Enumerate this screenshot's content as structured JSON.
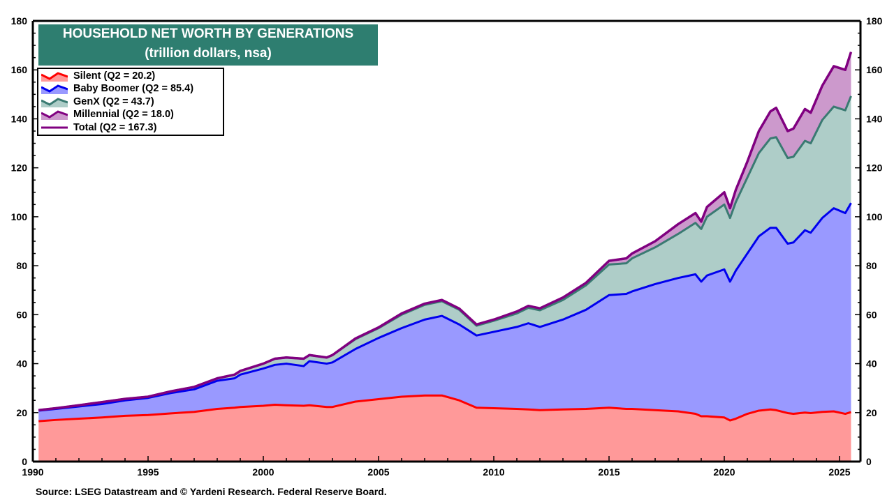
{
  "chart_data": {
    "type": "area",
    "stacked": true,
    "title": "HOUSEHOLD NET WORTH BY GENERATIONS",
    "subtitle": "(trillion dollars, nsa)",
    "xlabel": "",
    "ylabel": "",
    "xlim": [
      1990,
      2026
    ],
    "ylim": [
      0,
      180
    ],
    "x_ticks": [
      "1990",
      "1995",
      "2000",
      "2005",
      "2010",
      "2015",
      "2020",
      "2025"
    ],
    "y_ticks": [
      "0",
      "20",
      "40",
      "60",
      "80",
      "100",
      "120",
      "140",
      "160",
      "180"
    ],
    "grid": false,
    "legend_placement": "top-left",
    "source": "Source: LSEG Datastream and © Yardeni Research. Federal Reserve Board.",
    "x": [
      1990.25,
      1991,
      1992,
      1993,
      1994,
      1995,
      1996,
      1997,
      1998,
      1998.75,
      1999,
      2000,
      2000.5,
      2001,
      2001.75,
      2002,
      2002.75,
      2003,
      2004,
      2005,
      2006,
      2007,
      2007.75,
      2008.5,
      2009.25,
      2010,
      2011,
      2011.5,
      2012,
      2013,
      2014,
      2015,
      2015.75,
      2016,
      2017,
      2018,
      2018.75,
      2019,
      2019.25,
      2020,
      2020.25,
      2020.5,
      2021,
      2021.5,
      2022,
      2022.25,
      2022.75,
      2023,
      2023.5,
      2023.75,
      2024.25,
      2024.75,
      2025.25,
      2025.5
    ],
    "series": [
      {
        "name": "Silent (Q2 = 20.2)",
        "fill": "#ff9999",
        "line": "#ff0000",
        "values": [
          16.5,
          17.0,
          17.5,
          18.0,
          18.7,
          19.0,
          19.7,
          20.3,
          21.5,
          22.0,
          22.3,
          22.8,
          23.2,
          23.0,
          22.8,
          23.0,
          22.3,
          22.3,
          24.5,
          25.5,
          26.5,
          27.0,
          27.0,
          25.0,
          22.0,
          21.8,
          21.5,
          21.3,
          21.0,
          21.3,
          21.5,
          22.0,
          21.5,
          21.5,
          21.0,
          20.5,
          19.5,
          18.5,
          18.5,
          18.0,
          16.8,
          17.5,
          19.5,
          20.8,
          21.3,
          21.0,
          19.8,
          19.5,
          20.0,
          19.8,
          20.3,
          20.5,
          19.5,
          20.2
        ]
      },
      {
        "name": "Baby Boomer (Q2 = 85.4)",
        "fill": "#9999ff",
        "line": "#0000ee",
        "values": [
          4.3,
          4.5,
          5.0,
          5.5,
          6.3,
          7.0,
          8.3,
          9.2,
          11.5,
          12.0,
          13.2,
          15.2,
          16.3,
          17.0,
          16.2,
          18.0,
          17.7,
          18.2,
          21.5,
          25.0,
          28.0,
          31.0,
          32.5,
          31.0,
          29.5,
          31.2,
          33.5,
          35.2,
          34.0,
          36.7,
          40.5,
          46.0,
          47.0,
          48.0,
          51.5,
          54.5,
          57.0,
          55.0,
          57.5,
          60.5,
          56.7,
          60.5,
          65.5,
          71.2,
          74.2,
          74.5,
          69.2,
          70.0,
          74.5,
          73.7,
          79.2,
          83.0,
          82.0,
          85.4
        ]
      },
      {
        "name": "GenX (Q2 = 43.7)",
        "fill": "#aecdc8",
        "line": "#3a7a72",
        "values": [
          0.2,
          0.3,
          0.5,
          0.8,
          0.6,
          0.5,
          0.7,
          1.0,
          1.0,
          1.5,
          1.5,
          2.0,
          2.5,
          2.5,
          3.0,
          2.5,
          2.5,
          3.0,
          4.0,
          4.0,
          5.5,
          6.0,
          6.0,
          6.0,
          4.0,
          4.5,
          5.5,
          6.3,
          6.8,
          8.0,
          10.0,
          12.5,
          12.5,
          13.5,
          15.0,
          18.0,
          21.0,
          21.5,
          24.0,
          26.5,
          26.0,
          28.0,
          31.0,
          34.0,
          36.5,
          37.0,
          35.0,
          35.0,
          36.5,
          36.5,
          40.0,
          41.5,
          42.0,
          43.7
        ]
      },
      {
        "name": "Millennial (Q2 = 18.0)",
        "fill": "#cc99cc",
        "line": "#800080",
        "values": [
          0,
          0,
          0,
          0,
          0,
          0,
          0,
          0,
          0,
          0,
          0,
          0,
          0,
          0,
          0,
          0,
          0,
          0,
          0.3,
          0.3,
          0.5,
          0.5,
          0.5,
          0.5,
          0.5,
          0.5,
          0.8,
          0.8,
          0.8,
          1.0,
          1.0,
          1.5,
          2.0,
          2.0,
          2.5,
          4.0,
          4.0,
          3.0,
          4.0,
          5.0,
          4.0,
          5.0,
          6.5,
          9.0,
          11.0,
          12.0,
          11.0,
          11.5,
          13.0,
          12.5,
          14.0,
          16.5,
          16.5,
          18.0
        ]
      }
    ],
    "total": {
      "name": "Total (Q2 = 167.3)",
      "line": "#800080"
    }
  }
}
